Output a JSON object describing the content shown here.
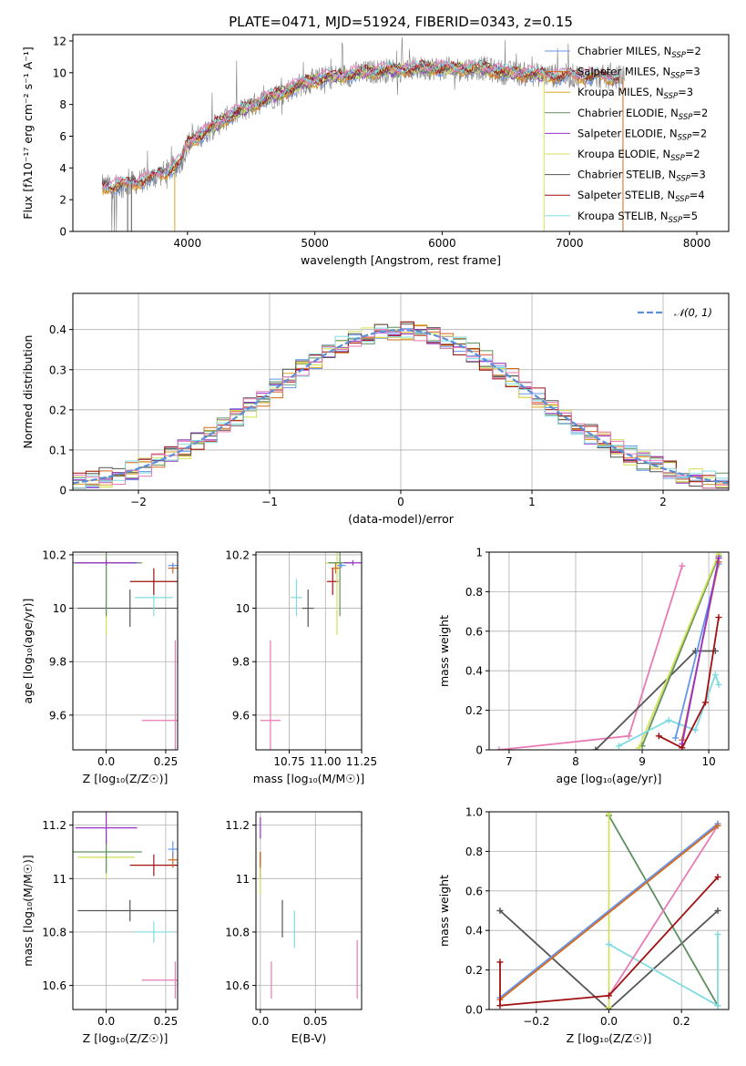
{
  "colors": {
    "Chabrier MILES": "#6495ed",
    "Salpeter MILES": "#d2691e",
    "Kroupa MILES": "#daa520",
    "Chabrier ELODIE": "#5f8f5f",
    "Salpeter ELODIE": "#9932cc",
    "Kroupa ELODIE": "#d4e157",
    "Chabrier STELIB": "#555555",
    "Salpeter STELIB": "#a01010",
    "Kroupa STELIB": "#7fdbe0",
    "Pink": "#e87ab5",
    "Spectrum": "#808080",
    "Gauss": "#5b8fd8"
  },
  "chart_data": [
    {
      "id": "spectrum",
      "type": "line",
      "title": "PLATE=0471, MJD=51924, FIBERID=0343, z=0.15",
      "xlabel": "wavelength [Angstrom, rest frame]",
      "ylabel": "Flux [fλ10⁻¹⁷ erg cm⁻² s⁻¹ A⁻¹]",
      "xlim": [
        3100,
        8250
      ],
      "ylim": [
        0,
        12.4
      ],
      "xticks": [
        4000,
        5000,
        6000,
        7000,
        8000
      ],
      "yticks": [
        0,
        2,
        4,
        6,
        8,
        10,
        12
      ],
      "legend_position": "upper-right",
      "legend": [
        {
          "name": "Chabrier MILES, N",
          "sub": "SSP",
          "suffix": "=2",
          "color": "Chabrier MILES"
        },
        {
          "name": "Salpeter MILES, N",
          "sub": "SSP",
          "suffix": "=3",
          "color": "Salpeter MILES"
        },
        {
          "name": "Kroupa MILES, N",
          "sub": "SSP",
          "suffix": "=3",
          "color": "Kroupa MILES"
        },
        {
          "name": "Chabrier ELODIE, N",
          "sub": "SSP",
          "suffix": "=2",
          "color": "Chabrier ELODIE"
        },
        {
          "name": "Salpeter ELODIE, N",
          "sub": "SSP",
          "suffix": "=2",
          "color": "Salpeter ELODIE"
        },
        {
          "name": "Kroupa ELODIE, N",
          "sub": "SSP",
          "suffix": "=2",
          "color": "Kroupa ELODIE"
        },
        {
          "name": "Chabrier STELIB, N",
          "sub": "SSP",
          "suffix": "=3",
          "color": "Chabrier STELIB"
        },
        {
          "name": "Salpeter STELIB, N",
          "sub": "SSP",
          "suffix": "=4",
          "color": "Salpeter STELIB"
        },
        {
          "name": "Kroupa STELIB, N",
          "sub": "SSP",
          "suffix": "=5",
          "color": "Kroupa STELIB"
        }
      ],
      "continuum": [
        [
          3330,
          2.8
        ],
        [
          3500,
          2.9
        ],
        [
          3700,
          3.3
        ],
        [
          3850,
          3.8
        ],
        [
          3950,
          4.4
        ],
        [
          4000,
          5.5
        ],
        [
          4150,
          6.3
        ],
        [
          4300,
          7.1
        ],
        [
          4500,
          7.9
        ],
        [
          4700,
          8.6
        ],
        [
          4900,
          9.3
        ],
        [
          5100,
          9.7
        ],
        [
          5300,
          9.9
        ],
        [
          5500,
          10.1
        ],
        [
          5700,
          10.2
        ],
        [
          5900,
          10.3
        ],
        [
          6100,
          10.2
        ],
        [
          6300,
          10.3
        ],
        [
          6500,
          10.0
        ],
        [
          6700,
          9.9
        ],
        [
          6900,
          9.8
        ],
        [
          7100,
          9.8
        ],
        [
          7300,
          9.7
        ],
        [
          7400,
          9.7
        ]
      ],
      "spectrum_range": [
        3330,
        7430
      ],
      "model_range": [
        3330,
        7400
      ]
    },
    {
      "id": "residuals",
      "type": "histogram",
      "xlabel": "(data-model)/error",
      "ylabel": "Normed distribution",
      "xlim": [
        -2.5,
        2.5
      ],
      "ylim": [
        0,
        0.49
      ],
      "xticks": [
        -2,
        -1,
        0,
        1,
        2
      ],
      "yticks": [
        0.0,
        0.1,
        0.2,
        0.3,
        0.4
      ],
      "bin_width": 0.1,
      "gauss_label": "𝒩(0, 1)",
      "legend_position": "upper-right"
    },
    {
      "id": "age_vs_Z",
      "type": "errorbar",
      "xlabel": "Z [log₁₀(Z/Z☉)]",
      "ylabel": "age  [log₁₀(age/yr)]",
      "xlim": [
        -0.14,
        0.3
      ],
      "ylim": [
        9.47,
        10.21
      ],
      "xticks": [
        0.0,
        0.25
      ],
      "yticks": [
        9.6,
        9.8,
        10.0,
        10.2
      ],
      "points": [
        {
          "c": "Chabrier STELIB",
          "x": 0.1,
          "y": 10.0,
          "xe": 0.22,
          "ye": 0.07
        },
        {
          "c": "Kroupa STELIB",
          "x": 0.2,
          "y": 10.04,
          "xe": 0.08,
          "ye": 0.07
        },
        {
          "c": "Salpeter STELIB",
          "x": 0.2,
          "y": 10.1,
          "xe": 0.1,
          "ye": 0.05
        },
        {
          "c": "Kroupa ELODIE",
          "x": 0.0,
          "y": 10.17,
          "xe": 0.12,
          "ye": 0.27
        },
        {
          "c": "Chabrier ELODIE",
          "x": 0.0,
          "y": 10.17,
          "xe": 0.15,
          "ye": 0.2
        },
        {
          "c": "Salpeter MILES",
          "x": 0.28,
          "y": 10.15,
          "xe": 0.02,
          "ye": 0.02
        },
        {
          "c": "Chabrier MILES",
          "x": 0.28,
          "y": 10.16,
          "xe": 0.02,
          "ye": 0.01
        },
        {
          "c": "Salpeter ELODIE",
          "x": 0.0,
          "y": 10.17,
          "xe": 0.13,
          "ye": 0.01
        },
        {
          "c": "Pink",
          "x": 0.29,
          "y": 9.58,
          "xe": 0.14,
          "ye": 0.3
        }
      ]
    },
    {
      "id": "age_vs_mass",
      "type": "errorbar",
      "xlabel": "mass [log₁₀(M/M☉)]",
      "ylabel": "",
      "xlim": [
        10.52,
        11.25
      ],
      "ylim": [
        9.47,
        10.21
      ],
      "xticks": [
        10.75,
        11.0,
        11.25
      ],
      "yticks": [
        9.6,
        9.8,
        10.0,
        10.2
      ],
      "points": [
        {
          "c": "Chabrier STELIB",
          "x": 10.88,
          "y": 10.0,
          "xe": 0.04,
          "ye": 0.07
        },
        {
          "c": "Kroupa STELIB",
          "x": 10.8,
          "y": 10.04,
          "xe": 0.04,
          "ye": 0.07
        },
        {
          "c": "Salpeter STELIB",
          "x": 11.05,
          "y": 10.1,
          "xe": 0.04,
          "ye": 0.05
        },
        {
          "c": "Kroupa ELODIE",
          "x": 11.08,
          "y": 10.17,
          "xe": 0.08,
          "ye": 0.27
        },
        {
          "c": "Chabrier ELODIE",
          "x": 11.1,
          "y": 10.17,
          "xe": 0.08,
          "ye": 0.2
        },
        {
          "c": "Salpeter ELODIE",
          "x": 11.19,
          "y": 10.17,
          "xe": 0.06,
          "ye": 0.01
        },
        {
          "c": "Salpeter MILES",
          "x": 11.07,
          "y": 10.15,
          "xe": 0.03,
          "ye": 0.02
        },
        {
          "c": "Chabrier MILES",
          "x": 11.11,
          "y": 10.16,
          "xe": 0.03,
          "ye": 0.01
        },
        {
          "c": "Pink",
          "x": 10.62,
          "y": 9.58,
          "xe": 0.07,
          "ye": 0.3
        }
      ]
    },
    {
      "id": "mw_vs_age",
      "type": "line",
      "xlabel": "age  [log₁₀(age/yr)]",
      "ylabel": "mass weight",
      "xlim": [
        6.7,
        10.3
      ],
      "ylim": [
        0,
        1.0
      ],
      "xticks": [
        7,
        8,
        9,
        10
      ],
      "yticks": [
        0.0,
        0.2,
        0.4,
        0.6,
        0.8,
        1.0
      ],
      "series": [
        {
          "c": "Pink",
          "x": [
            6.85,
            8.8,
            9.6
          ],
          "y": [
            0.0,
            0.07,
            0.93
          ]
        },
        {
          "c": "Chabrier STELIB",
          "x": [
            8.3,
            9.8,
            10.1
          ],
          "y": [
            0.0,
            0.5,
            0.5
          ]
        },
        {
          "c": "Chabrier ELODIE",
          "x": [
            9.0,
            10.15
          ],
          "y": [
            0.02,
            0.98
          ]
        },
        {
          "c": "Kroupa ELODIE",
          "x": [
            8.95,
            10.15
          ],
          "y": [
            0.01,
            0.99
          ]
        },
        {
          "c": "Kroupa STELIB",
          "x": [
            8.65,
            9.4,
            9.8,
            10.1,
            10.15
          ],
          "y": [
            0.02,
            0.15,
            0.1,
            0.38,
            0.33
          ]
        },
        {
          "c": "Chabrier MILES",
          "x": [
            9.5,
            10.15
          ],
          "y": [
            0.06,
            0.94
          ]
        },
        {
          "c": "Salpeter MILES",
          "x": [
            9.6,
            10.15
          ],
          "y": [
            0.05,
            0.95
          ]
        },
        {
          "c": "Salpeter ELODIE",
          "x": [
            9.6,
            10.15
          ],
          "y": [
            0.03,
            0.97
          ]
        },
        {
          "c": "Salpeter STELIB",
          "x": [
            9.25,
            9.6,
            9.95,
            10.15
          ],
          "y": [
            0.07,
            0.01,
            0.24,
            0.67
          ]
        }
      ]
    },
    {
      "id": "mass_vs_Z",
      "type": "errorbar",
      "xlabel": "Z [log₁₀(Z/Z☉)]",
      "ylabel": "mass [log₁₀(M/M☉)]",
      "xlim": [
        -0.14,
        0.3
      ],
      "ylim": [
        10.51,
        11.25
      ],
      "xticks": [
        0.0,
        0.25
      ],
      "yticks": [
        10.6,
        10.8,
        11.0,
        11.2
      ],
      "points": [
        {
          "c": "Chabrier STELIB",
          "x": 0.1,
          "y": 10.88,
          "xe": 0.22,
          "ye": 0.04
        },
        {
          "c": "Kroupa STELIB",
          "x": 0.2,
          "y": 10.8,
          "xe": 0.08,
          "ye": 0.04
        },
        {
          "c": "Salpeter STELIB",
          "x": 0.2,
          "y": 11.05,
          "xe": 0.1,
          "ye": 0.04
        },
        {
          "c": "Kroupa ELODIE",
          "x": 0.0,
          "y": 11.08,
          "xe": 0.12,
          "ye": 0.08
        },
        {
          "c": "Chabrier ELODIE",
          "x": 0.0,
          "y": 11.1,
          "xe": 0.15,
          "ye": 0.08
        },
        {
          "c": "Salpeter ELODIE",
          "x": 0.0,
          "y": 11.19,
          "xe": 0.13,
          "ye": 0.06
        },
        {
          "c": "Salpeter MILES",
          "x": 0.28,
          "y": 11.07,
          "xe": 0.02,
          "ye": 0.03
        },
        {
          "c": "Chabrier MILES",
          "x": 0.28,
          "y": 11.11,
          "xe": 0.02,
          "ye": 0.03
        },
        {
          "c": "Pink",
          "x": 0.29,
          "y": 10.62,
          "xe": 0.14,
          "ye": 0.07
        }
      ]
    },
    {
      "id": "mass_vs_EBV",
      "type": "errorbar",
      "xlabel": "E(B-V)",
      "ylabel": "",
      "xlim": [
        -0.004,
        0.092
      ],
      "ylim": [
        10.51,
        11.25
      ],
      "xticks": [
        0.0,
        0.05
      ],
      "yticks": [
        10.6,
        10.8,
        11.0,
        11.2
      ],
      "points": [
        {
          "c": "Chabrier STELIB",
          "x": 0.02,
          "y": 10.85,
          "xe": 0,
          "ye": 0.07
        },
        {
          "c": "Kroupa STELIB",
          "x": 0.031,
          "y": 10.81,
          "xe": 0,
          "ye": 0.07
        },
        {
          "c": "Salpeter ELODIE",
          "x": 0.0,
          "y": 11.19,
          "xe": 0,
          "ye": 0.04
        },
        {
          "c": "Salpeter STELIB",
          "x": 0.0,
          "y": 11.05,
          "xe": 0,
          "ye": 0.05
        },
        {
          "c": "Kroupa ELODIE",
          "x": 0.0,
          "y": 11.0,
          "xe": 0,
          "ye": 0.06
        },
        {
          "c": "Salpeter MILES",
          "x": 0.0,
          "y": 11.07,
          "xe": 0,
          "ye": 0.03
        },
        {
          "c": "Pink",
          "x": 0.088,
          "y": 10.66,
          "xe": 0,
          "ye": 0.11
        },
        {
          "c": "Pink",
          "x": 0.01,
          "y": 10.62,
          "xe": 0,
          "ye": 0.07
        }
      ]
    },
    {
      "id": "mw_vs_Z",
      "type": "line",
      "xlabel": "Z [log₁₀(Z/Z☉)]",
      "ylabel": "mass weight",
      "xlim": [
        -0.33,
        0.33
      ],
      "ylim": [
        0,
        1.0
      ],
      "xticks": [
        -0.2,
        0.0,
        0.2
      ],
      "yticks": [
        0.0,
        0.2,
        0.4,
        0.6,
        0.8,
        1.0
      ],
      "series": [
        {
          "c": "Chabrier STELIB",
          "x": [
            -0.3,
            0.0,
            0.3
          ],
          "y": [
            0.5,
            0.0,
            0.5
          ]
        },
        {
          "c": "Chabrier ELODIE",
          "x": [
            0.0,
            0.3
          ],
          "y": [
            0.98,
            0.02
          ]
        },
        {
          "c": "Kroupa ELODIE",
          "x": [
            0.0,
            0.0
          ],
          "y": [
            0.99,
            0.01
          ]
        },
        {
          "c": "Kroupa STELIB",
          "x": [
            0.0,
            0.3,
            0.3
          ],
          "y": [
            0.33,
            0.02,
            0.38
          ]
        },
        {
          "c": "Pink",
          "x": [
            0.0,
            0.3
          ],
          "y": [
            0.07,
            0.93
          ]
        },
        {
          "c": "Chabrier MILES",
          "x": [
            -0.3,
            0.3
          ],
          "y": [
            0.06,
            0.94
          ]
        },
        {
          "c": "Salpeter MILES",
          "x": [
            -0.3,
            0.3
          ],
          "y": [
            0.05,
            0.93
          ]
        },
        {
          "c": "Salpeter STELIB",
          "x": [
            -0.3,
            -0.3,
            0.0,
            0.3
          ],
          "y": [
            0.24,
            0.02,
            0.07,
            0.67
          ]
        }
      ]
    }
  ]
}
